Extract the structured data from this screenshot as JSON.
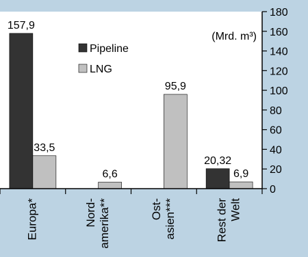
{
  "chart_data": {
    "type": "bar",
    "categories": [
      [
        "Europa*"
      ],
      [
        "Nord-",
        "amerika**"
      ],
      [
        "Ost-",
        "asien***"
      ],
      [
        "Rest der",
        "Welt"
      ]
    ],
    "series": [
      {
        "name": "Pipeline",
        "values": [
          157.9,
          0,
          0,
          20.32
        ],
        "labels": [
          "157,9",
          "",
          "",
          "20,32"
        ],
        "color": "#333333"
      },
      {
        "name": "LNG",
        "values": [
          33.5,
          6.6,
          95.9,
          6.9
        ],
        "labels": [
          "33,5",
          "6,6",
          "95,9",
          "6,9"
        ],
        "color": "#c0c0c0"
      }
    ],
    "unit_label": "(Mrd. m³)",
    "ylim": [
      0,
      180
    ],
    "yticks": [
      0,
      20,
      40,
      60,
      80,
      100,
      120,
      140,
      160,
      180
    ],
    "axis_side": "right",
    "legend_position": "top-center",
    "colors": {
      "background": "#bcd3e3",
      "plot": "#ffffff"
    }
  }
}
